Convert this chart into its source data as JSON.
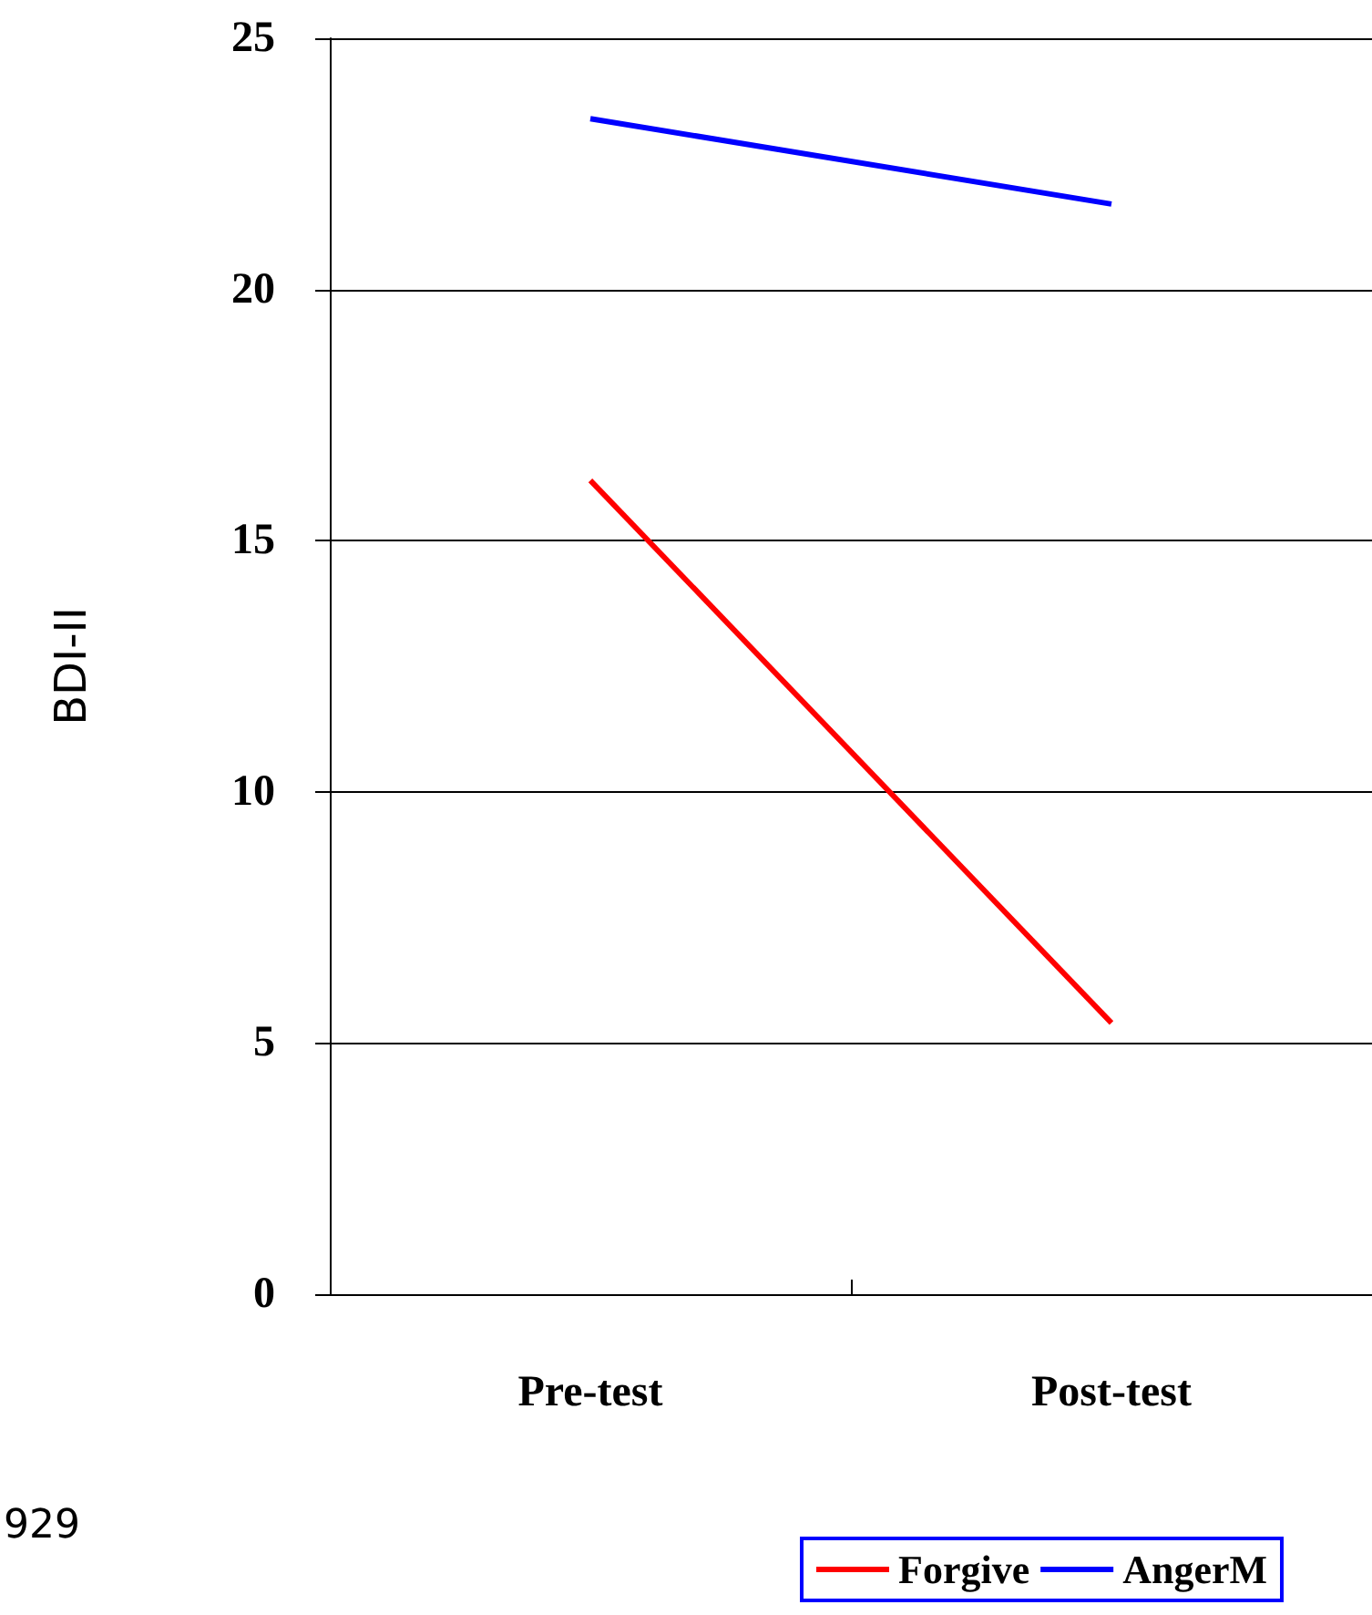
{
  "chart_data": {
    "type": "line",
    "ylabel": "BDI-II",
    "categories": [
      "Pre-test",
      "Post-test"
    ],
    "series": [
      {
        "name": "Forgive",
        "color": "#ff0000",
        "values": [
          16.2,
          5.4
        ]
      },
      {
        "name": "AngerM",
        "color": "#0000ff",
        "values": [
          23.4,
          21.7
        ]
      }
    ],
    "ylim": [
      0,
      25
    ],
    "yticks": [
      0,
      5,
      10,
      15,
      20,
      25
    ],
    "grid": "y",
    "legend": "bottom",
    "marker": "none",
    "line_style": "solid",
    "annotations": [
      "929"
    ]
  }
}
